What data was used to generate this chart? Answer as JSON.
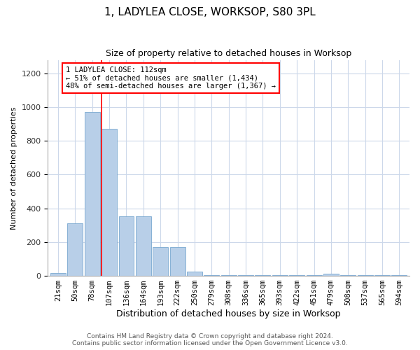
{
  "title": "1, LADYLEA CLOSE, WORKSOP, S80 3PL",
  "subtitle": "Size of property relative to detached houses in Worksop",
  "xlabel": "Distribution of detached houses by size in Worksop",
  "ylabel": "Number of detached properties",
  "categories": [
    "21sqm",
    "50sqm",
    "78sqm",
    "107sqm",
    "136sqm",
    "164sqm",
    "193sqm",
    "222sqm",
    "250sqm",
    "279sqm",
    "308sqm",
    "336sqm",
    "365sqm",
    "393sqm",
    "422sqm",
    "451sqm",
    "479sqm",
    "508sqm",
    "537sqm",
    "565sqm",
    "594sqm"
  ],
  "values": [
    15,
    310,
    970,
    870,
    355,
    355,
    170,
    170,
    25,
    3,
    3,
    3,
    3,
    3,
    3,
    3,
    12,
    3,
    3,
    3,
    3
  ],
  "bar_color": "#b8cfe8",
  "bar_edge_color": "#7aa8d0",
  "annotation_text_line1": "1 LADYLEA CLOSE: 112sqm",
  "annotation_text_line2": "← 51% of detached houses are smaller (1,434)",
  "annotation_text_line3": "48% of semi-detached houses are larger (1,367) →",
  "annotation_box_color": "white",
  "annotation_box_edge_color": "red",
  "vline_color": "red",
  "vline_x_index": 3,
  "ylim": [
    0,
    1280
  ],
  "yticks": [
    0,
    200,
    400,
    600,
    800,
    1000,
    1200
  ],
  "background_color": "white",
  "grid_color": "#ccd8ea",
  "footer_line1": "Contains HM Land Registry data © Crown copyright and database right 2024.",
  "footer_line2": "Contains public sector information licensed under the Open Government Licence v3.0."
}
